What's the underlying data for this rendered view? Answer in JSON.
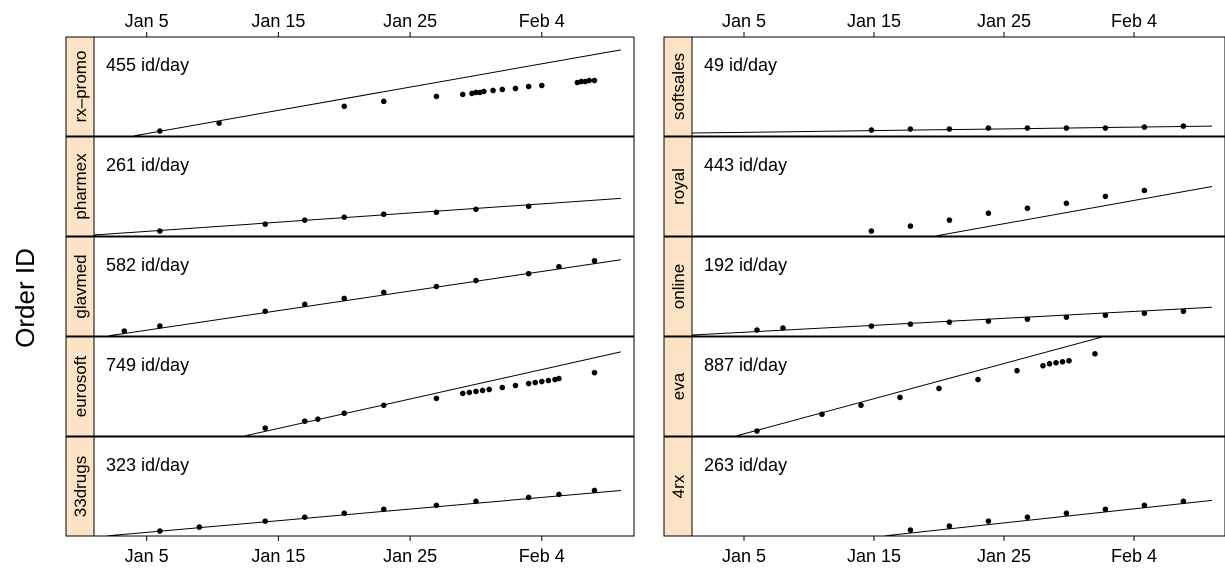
{
  "chart_data": {
    "type": "scatter",
    "ylabel": "Order ID",
    "x_start": "2008-01-01",
    "x_end": "2008-02-11",
    "x_ticks": [
      "2008-01-05",
      "2008-01-15",
      "2008-01-25",
      "2008-02-04"
    ],
    "x_tick_labels": [
      "Jan  5",
      "Jan 15",
      "Jan 25",
      "Feb  4"
    ],
    "panels": [
      {
        "name": "rx–promo",
        "rate_label": "455 id/day",
        "slope": 455,
        "line_days": [
          0,
          40
        ],
        "line_frac": [
          -0.07,
          0.87
        ],
        "points": [
          [
            "2008-01-06",
            0.05
          ],
          [
            "2008-01-10.5",
            0.13
          ],
          [
            "2008-01-20",
            0.3
          ],
          [
            "2008-01-23",
            0.35
          ],
          [
            "2008-01-27",
            0.4
          ],
          [
            "2008-01-29",
            0.42
          ],
          [
            "2008-01-29.7",
            0.43
          ],
          [
            "2008-01-30",
            0.44
          ],
          [
            "2008-01-30.3",
            0.44
          ],
          [
            "2008-01-30.6",
            0.45
          ],
          [
            "2008-01-31.3",
            0.46
          ],
          [
            "2008-02-01",
            0.47
          ],
          [
            "2008-02-02",
            0.48
          ],
          [
            "2008-02-03",
            0.5
          ],
          [
            "2008-02-04",
            0.51
          ],
          [
            "2008-02-06.7",
            0.54
          ],
          [
            "2008-02-07",
            0.55
          ],
          [
            "2008-02-07.3",
            0.55
          ],
          [
            "2008-02-07.6",
            0.56
          ],
          [
            "2008-02-08",
            0.56
          ]
        ]
      },
      {
        "name": "softsales",
        "rate_label": "49 id/day",
        "slope": 49,
        "line_days": [
          0,
          40
        ],
        "line_frac": [
          0.03,
          0.1
        ],
        "points": [
          [
            "2008-01-14.8",
            0.06
          ],
          [
            "2008-01-17.8",
            0.07
          ],
          [
            "2008-01-20.8",
            0.07
          ],
          [
            "2008-01-23.8",
            0.08
          ],
          [
            "2008-01-26.8",
            0.08
          ],
          [
            "2008-01-29.8",
            0.08
          ],
          [
            "2008-02-01.8",
            0.08
          ],
          [
            "2008-02-04.8",
            0.09
          ],
          [
            "2008-02-07.8",
            0.1
          ]
        ]
      },
      {
        "name": "pharmex",
        "rate_label": "261 id/day",
        "slope": 261,
        "line_days": [
          0,
          40
        ],
        "line_frac": [
          0.01,
          0.38
        ],
        "points": [
          [
            "2008-01-06",
            0.05
          ],
          [
            "2008-01-14",
            0.12
          ],
          [
            "2008-01-17",
            0.16
          ],
          [
            "2008-01-20",
            0.19
          ],
          [
            "2008-01-23",
            0.22
          ],
          [
            "2008-01-27",
            0.24
          ],
          [
            "2008-01-30",
            0.27
          ],
          [
            "2008-02-03",
            0.3
          ]
        ]
      },
      {
        "name": "royal",
        "rate_label": "443 id/day",
        "slope": 443,
        "line_days": [
          0,
          40
        ],
        "line_frac": [
          -0.44,
          0.5
        ],
        "points": [
          [
            "2008-01-14.8",
            0.05
          ],
          [
            "2008-01-17.8",
            0.1
          ],
          [
            "2008-01-20.8",
            0.16
          ],
          [
            "2008-01-23.8",
            0.23
          ],
          [
            "2008-01-26.8",
            0.28
          ],
          [
            "2008-01-29.8",
            0.33
          ],
          [
            "2008-02-01.8",
            0.4
          ],
          [
            "2008-02-04.8",
            0.46
          ]
        ]
      },
      {
        "name": "glavmed",
        "rate_label": "582 id/day",
        "slope": 582,
        "line_days": [
          0,
          40
        ],
        "line_frac": [
          -0.02,
          0.77
        ],
        "points": [
          [
            "2008-01-03.3",
            0.05
          ],
          [
            "2008-01-06",
            0.1
          ],
          [
            "2008-01-14",
            0.25
          ],
          [
            "2008-01-17",
            0.32
          ],
          [
            "2008-01-20",
            0.38
          ],
          [
            "2008-01-23",
            0.44
          ],
          [
            "2008-01-27",
            0.5
          ],
          [
            "2008-01-30",
            0.56
          ],
          [
            "2008-02-03",
            0.63
          ],
          [
            "2008-02-05.3",
            0.7
          ],
          [
            "2008-02-08",
            0.76
          ]
        ]
      },
      {
        "name": "online",
        "rate_label": "192 id/day",
        "slope": 192,
        "line_days": [
          0,
          40
        ],
        "line_frac": [
          0.01,
          0.29
        ],
        "points": [
          [
            "2008-01-06",
            0.06
          ],
          [
            "2008-01-08",
            0.08
          ],
          [
            "2008-01-14.8",
            0.1
          ],
          [
            "2008-01-17.8",
            0.12
          ],
          [
            "2008-01-20.8",
            0.14
          ],
          [
            "2008-01-23.8",
            0.15
          ],
          [
            "2008-01-26.8",
            0.17
          ],
          [
            "2008-01-29.8",
            0.19
          ],
          [
            "2008-02-01.8",
            0.21
          ],
          [
            "2008-02-04.8",
            0.23
          ],
          [
            "2008-02-07.8",
            0.25
          ]
        ]
      },
      {
        "name": "eurosoft",
        "rate_label": "749 id/day",
        "slope": 749,
        "line_days": [
          0,
          40
        ],
        "line_frac": [
          -0.34,
          0.85
        ],
        "points": [
          [
            "2008-01-14",
            0.08
          ],
          [
            "2008-01-17",
            0.15
          ],
          [
            "2008-01-18",
            0.17
          ],
          [
            "2008-01-20",
            0.23
          ],
          [
            "2008-01-23",
            0.31
          ],
          [
            "2008-01-27",
            0.38
          ],
          [
            "2008-01-29",
            0.43
          ],
          [
            "2008-01-29.5",
            0.44
          ],
          [
            "2008-01-30",
            0.45
          ],
          [
            "2008-01-30.5",
            0.46
          ],
          [
            "2008-01-31",
            0.47
          ],
          [
            "2008-02-01",
            0.49
          ],
          [
            "2008-02-02",
            0.51
          ],
          [
            "2008-02-03",
            0.53
          ],
          [
            "2008-02-03.5",
            0.54
          ],
          [
            "2008-02-04",
            0.55
          ],
          [
            "2008-02-04.5",
            0.56
          ],
          [
            "2008-02-05",
            0.57
          ],
          [
            "2008-02-05.3",
            0.58
          ],
          [
            "2008-02-08",
            0.64
          ]
        ]
      },
      {
        "name": "eva",
        "rate_label": "887 id/day",
        "slope": 887,
        "line_days": [
          0,
          40
        ],
        "line_frac": [
          -0.12,
          1.3
        ],
        "points": [
          [
            "2008-01-06",
            0.05
          ],
          [
            "2008-01-11",
            0.22
          ],
          [
            "2008-01-14",
            0.31
          ],
          [
            "2008-01-17",
            0.39
          ],
          [
            "2008-01-20",
            0.48
          ],
          [
            "2008-01-23",
            0.57
          ],
          [
            "2008-01-26",
            0.66
          ],
          [
            "2008-01-28",
            0.71
          ],
          [
            "2008-01-28.5",
            0.73
          ],
          [
            "2008-01-29",
            0.74
          ],
          [
            "2008-01-29.5",
            0.75
          ],
          [
            "2008-01-30",
            0.76
          ],
          [
            "2008-02-01",
            0.83
          ]
        ]
      },
      {
        "name": "33drugs",
        "rate_label": "323 id/day",
        "slope": 323,
        "line_days": [
          0,
          40
        ],
        "line_frac": [
          -0.01,
          0.46
        ],
        "points": [
          [
            "2008-01-06",
            0.05
          ],
          [
            "2008-01-09",
            0.09
          ],
          [
            "2008-01-14",
            0.15
          ],
          [
            "2008-01-17",
            0.19
          ],
          [
            "2008-01-20",
            0.23
          ],
          [
            "2008-01-23",
            0.27
          ],
          [
            "2008-01-27",
            0.31
          ],
          [
            "2008-01-30",
            0.35
          ],
          [
            "2008-02-03",
            0.39
          ],
          [
            "2008-02-05.3",
            0.42
          ],
          [
            "2008-02-08",
            0.46
          ]
        ]
      },
      {
        "name": "4rx",
        "rate_label": "263 id/day",
        "slope": 263,
        "line_days": [
          0,
          40
        ],
        "line_frac": [
          -0.21,
          0.36
        ],
        "points": [
          [
            "2008-01-17.8",
            0.06
          ],
          [
            "2008-01-20.8",
            0.1
          ],
          [
            "2008-01-23.8",
            0.15
          ],
          [
            "2008-01-26.8",
            0.19
          ],
          [
            "2008-01-29.8",
            0.23
          ],
          [
            "2008-02-01.8",
            0.27
          ],
          [
            "2008-02-04.8",
            0.31
          ],
          [
            "2008-02-07.8",
            0.35
          ]
        ]
      }
    ]
  }
}
